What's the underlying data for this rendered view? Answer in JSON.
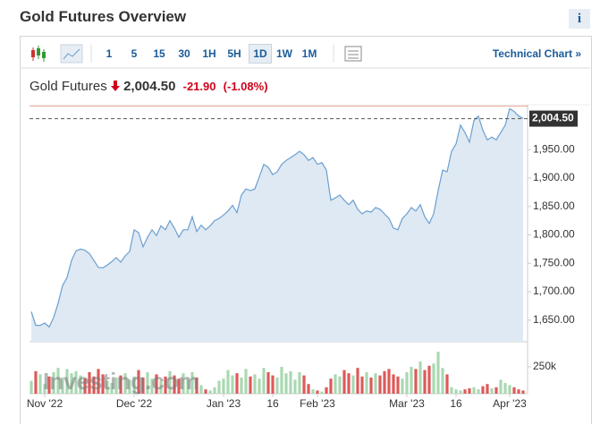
{
  "header": {
    "title": "Gold Futures Overview",
    "info": "i"
  },
  "toolbar": {
    "intervals": [
      "1",
      "5",
      "15",
      "30",
      "1H",
      "5H",
      "1D",
      "1W",
      "1M"
    ],
    "selected": "1D",
    "link": "Technical Chart »"
  },
  "chart_data": {
    "type": "area",
    "title": "Gold Futures",
    "last_price": {
      "value": 2004.5,
      "label": "2,004.50"
    },
    "change": "-21.90",
    "change_pct": "(-1.08%)",
    "previous_close": 2026.4,
    "color": "#6a9fd0",
    "fill": "#dfe9f3",
    "values": [
      1665,
      1641,
      1641,
      1645,
      1638,
      1655,
      1680,
      1711,
      1725,
      1755,
      1772,
      1775,
      1773,
      1767,
      1755,
      1743,
      1742,
      1747,
      1753,
      1760,
      1752,
      1763,
      1771,
      1809,
      1804,
      1779,
      1796,
      1809,
      1799,
      1816,
      1809,
      1825,
      1812,
      1796,
      1809,
      1809,
      1832,
      1806,
      1817,
      1809,
      1816,
      1825,
      1829,
      1835,
      1842,
      1852,
      1839,
      1870,
      1881,
      1878,
      1881,
      1902,
      1924,
      1919,
      1906,
      1911,
      1924,
      1931,
      1936,
      1941,
      1947,
      1941,
      1931,
      1936,
      1924,
      1927,
      1914,
      1861,
      1865,
      1870,
      1861,
      1853,
      1861,
      1845,
      1837,
      1842,
      1840,
      1848,
      1845,
      1837,
      1829,
      1812,
      1809,
      1829,
      1837,
      1848,
      1842,
      1853,
      1832,
      1820,
      1837,
      1878,
      1914,
      1911,
      1947,
      1960,
      1993,
      1980,
      1963,
      2001,
      2009,
      1984,
      1967,
      1972,
      1967,
      1980,
      1993,
      2022,
      2017,
      2009,
      2005
    ],
    "xlim": [
      -0.4,
      111
    ],
    "xticks": [
      {
        "value": 3,
        "label": "Nov '22"
      },
      {
        "value": 23,
        "label": "Dec '22"
      },
      {
        "value": 43,
        "label": "Jan '23"
      },
      {
        "value": 54,
        "label": "16"
      },
      {
        "value": 64,
        "label": "Feb '23"
      },
      {
        "value": 84,
        "label": "Mar '23"
      },
      {
        "value": 95,
        "label": "16"
      },
      {
        "value": 107,
        "label": "Apr '23"
      }
    ],
    "ylim": [
      1612,
      2029
    ],
    "yticks": [
      {
        "value": 1650,
        "label": "1,650.00"
      },
      {
        "value": 1700,
        "label": "1,700.00"
      },
      {
        "value": 1750,
        "label": "1,750.00"
      },
      {
        "value": 1800,
        "label": "1,800.00"
      },
      {
        "value": 1850,
        "label": "1,850.00"
      },
      {
        "value": 1900,
        "label": "1,900.00"
      },
      {
        "value": 1950,
        "label": "1,950.00"
      }
    ],
    "volume": {
      "values": [
        120000,
        210000,
        180000,
        90000,
        160000,
        200000,
        240000,
        150000,
        230000,
        190000,
        210000,
        170000,
        140000,
        200000,
        160000,
        230000,
        180000,
        120000,
        100000,
        150000,
        170000,
        190000,
        130000,
        160000,
        220000,
        150000,
        200000,
        140000,
        180000,
        120000,
        160000,
        210000,
        170000,
        140000,
        190000,
        130000,
        200000,
        150000,
        80000,
        40000,
        30000,
        60000,
        120000,
        140000,
        220000,
        170000,
        190000,
        150000,
        230000,
        160000,
        180000,
        140000,
        240000,
        200000,
        170000,
        150000,
        250000,
        190000,
        210000,
        130000,
        200000,
        170000,
        90000,
        40000,
        30000,
        20000,
        60000,
        140000,
        180000,
        160000,
        220000,
        190000,
        170000,
        240000,
        160000,
        200000,
        150000,
        190000,
        170000,
        210000,
        230000,
        180000,
        160000,
        140000,
        200000,
        250000,
        230000,
        300000,
        220000,
        260000,
        280000,
        390000,
        240000,
        180000,
        60000,
        40000,
        30000,
        40000,
        50000,
        60000,
        40000,
        70000,
        90000,
        50000,
        60000,
        130000,
        100000,
        80000,
        60000,
        40000,
        30000
      ],
      "ylim": [
        0,
        483000
      ],
      "yticks": [
        {
          "value": 250000,
          "label": "250k"
        }
      ],
      "up_color": "#a9d8b2",
      "down_color": "#dd5a5a"
    },
    "watermark": "Investing.com"
  }
}
